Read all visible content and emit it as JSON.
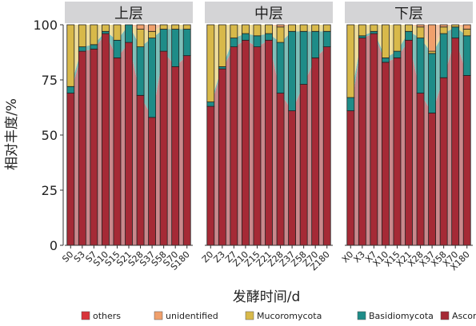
{
  "chart_data": {
    "type": "bar",
    "stacked": true,
    "with_area_ribbons": true,
    "ylabel": "相对丰度/%",
    "xlabel": "发酵时间/d",
    "ylim": [
      0,
      100
    ],
    "yticks": [
      0,
      25,
      50,
      75,
      100
    ],
    "grid": false,
    "legend_position": "bottom",
    "series_order": [
      "Ascomycota",
      "Basidiomycota",
      "Mucoromycota",
      "unidentified",
      "others"
    ],
    "legend": [
      "others",
      "unidentified",
      "Mucoromycota",
      "Basidiomycota",
      "Ascomycota"
    ],
    "colors": {
      "Ascomycota": "#a52a36",
      "Basidiomycota": "#1e8c88",
      "Mucoromycota": "#d8b94a",
      "unidentified": "#f0a06c",
      "others": "#d8343a",
      "ribbon_Ascomycota": "#c9888c",
      "ribbon_Basidiomycota": "#7ebfb9",
      "ribbon_Mucoromycota": "#eedd9c",
      "ribbon_unidentified": "#f6c7a8",
      "strip_bg": "#d4d4d6"
    },
    "panels": [
      {
        "title": "上层",
        "categories": [
          "S0",
          "S3",
          "S7",
          "S10",
          "S15",
          "S21",
          "S28",
          "S37",
          "S58",
          "S70",
          "S180"
        ],
        "series": [
          {
            "name": "Ascomycota",
            "values": [
              69,
              88,
              89,
              96,
              85,
              92,
              68,
              58,
              88,
              81,
              86
            ]
          },
          {
            "name": "Basidiomycota",
            "values": [
              3,
              2,
              2,
              1,
              8,
              8,
              22,
              36,
              10,
              17,
              12
            ]
          },
          {
            "name": "Mucoromycota",
            "values": [
              28,
              10,
              9,
              3,
              7,
              0,
              8,
              3,
              2,
              2,
              2
            ]
          },
          {
            "name": "unidentified",
            "values": [
              0,
              0,
              0,
              0,
              0,
              0,
              2,
              3,
              0,
              0,
              0
            ]
          },
          {
            "name": "others",
            "values": [
              0,
              0,
              0,
              0,
              0,
              0,
              0,
              0,
              0,
              0,
              0
            ]
          }
        ]
      },
      {
        "title": "中层",
        "categories": [
          "Z0",
          "Z3",
          "Z7",
          "Z10",
          "Z15",
          "Z21",
          "Z28",
          "Z37",
          "Z58",
          "Z70",
          "Z180"
        ],
        "series": [
          {
            "name": "Ascomycota",
            "values": [
              63,
              80,
              90,
              93,
              90,
              93,
              69,
              61,
              73,
              85,
              90
            ]
          },
          {
            "name": "Basidiomycota",
            "values": [
              2,
              1,
              4,
              3,
              5,
              3,
              23,
              36,
              24,
              12,
              7
            ]
          },
          {
            "name": "Mucoromycota",
            "values": [
              35,
              19,
              6,
              4,
              5,
              4,
              7,
              3,
              3,
              3,
              3
            ]
          },
          {
            "name": "unidentified",
            "values": [
              0,
              0,
              0,
              0,
              0,
              0,
              1,
              0,
              0,
              0,
              0
            ]
          },
          {
            "name": "others",
            "values": [
              0,
              0,
              0,
              0,
              0,
              0,
              0,
              0,
              0,
              0,
              0
            ]
          }
        ]
      },
      {
        "title": "下层",
        "categories": [
          "X0",
          "X3",
          "X7",
          "X10",
          "X15",
          "X21",
          "X28",
          "X37",
          "X58",
          "X70",
          "X180"
        ],
        "series": [
          {
            "name": "Ascomycota",
            "values": [
              61,
              94,
              96,
              83,
              85,
              93,
              69,
              60,
              76,
              94,
              77
            ]
          },
          {
            "name": "Basidiomycota",
            "values": [
              6,
              1,
              1,
              2,
              3,
              4,
              25,
              27,
              20,
              5,
              18
            ]
          },
          {
            "name": "Mucoromycota",
            "values": [
              33,
              5,
              3,
              15,
              12,
              3,
              5,
              1,
              3,
              1,
              3
            ]
          },
          {
            "name": "unidentified",
            "values": [
              0,
              0,
              0,
              0,
              0,
              0,
              1,
              12,
              1,
              0,
              2
            ]
          },
          {
            "name": "others",
            "values": [
              0,
              0,
              0,
              0,
              0,
              0,
              0,
              0,
              0,
              0,
              0
            ]
          }
        ]
      }
    ]
  }
}
